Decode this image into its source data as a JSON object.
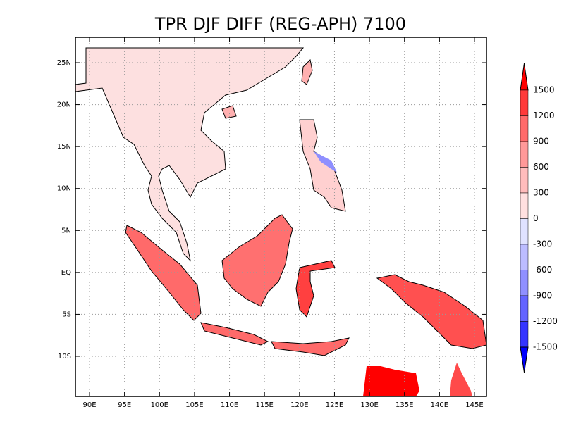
{
  "map": {
    "title": "TPR DJF DIFF (REG-APH) 7100",
    "lon_ticks": [
      {
        "value": 90,
        "label": "90E"
      },
      {
        "value": 95,
        "label": "95E"
      },
      {
        "value": 100,
        "label": "100E"
      },
      {
        "value": 105,
        "label": "105E"
      },
      {
        "value": 110,
        "label": "110E"
      },
      {
        "value": 115,
        "label": "115E"
      },
      {
        "value": 120,
        "label": "120E"
      },
      {
        "value": 125,
        "label": "125E"
      },
      {
        "value": 130,
        "label": "130E"
      },
      {
        "value": 135,
        "label": "135E"
      },
      {
        "value": 140,
        "label": "140E"
      },
      {
        "value": 145,
        "label": "145E"
      }
    ],
    "lat_ticks": [
      {
        "value": 25,
        "label": "25N"
      },
      {
        "value": 20,
        "label": "20N"
      },
      {
        "value": 15,
        "label": "15N"
      },
      {
        "value": 10,
        "label": "10N"
      },
      {
        "value": 5,
        "label": "5N"
      },
      {
        "value": 0,
        "label": "EQ"
      },
      {
        "value": -5,
        "label": "5S"
      },
      {
        "value": -10,
        "label": "10S"
      }
    ],
    "colorbar": {
      "levels": [
        1500,
        1200,
        900,
        600,
        300,
        0,
        -300,
        -600,
        -900,
        -1200,
        -1500
      ],
      "colors": [
        "#ff0000",
        "#ff3a3a",
        "#ff6a6a",
        "#ff9999",
        "#ffbcbc",
        "#ffe0e0",
        "#e0e2ff",
        "#bcbcff",
        "#9090ff",
        "#6464ff",
        "#3434ff",
        "#0000ff"
      ]
    }
  }
}
